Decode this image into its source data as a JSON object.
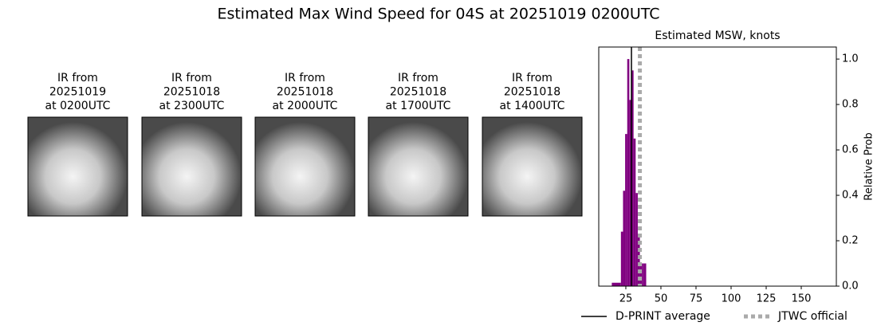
{
  "title": "Estimated Max Wind Speed for 04S at 20251019 0200UTC",
  "panels": [
    {
      "lines": [
        "IR from",
        "20251019",
        "at 0200UTC"
      ]
    },
    {
      "lines": [
        "IR from",
        "20251018",
        "at 2300UTC"
      ]
    },
    {
      "lines": [
        "IR from",
        "20251018",
        "at 2000UTC"
      ]
    },
    {
      "lines": [
        "IR from",
        "20251018",
        "at 1700UTC"
      ]
    },
    {
      "lines": [
        "IR from",
        "20251018",
        "at 1400UTC"
      ]
    }
  ],
  "chart_data": {
    "type": "histogram",
    "title": "Estimated MSW, knots",
    "ylabel": "Relative Prob",
    "y_axis_side": "right",
    "bins": [
      15,
      21.5,
      23,
      24.5,
      26,
      27.5,
      29,
      30.5,
      32,
      33.5,
      35,
      36.5,
      38,
      39.5
    ],
    "values": [
      0.015,
      0.24,
      0.42,
      0.67,
      1.0,
      0.82,
      0.95,
      0.65,
      0.41,
      0.23,
      0.1,
      0.1,
      0.1
    ],
    "color": "#800080",
    "reference_lines": [
      {
        "name": "D-PRINT average",
        "value": 29,
        "color": "#000000",
        "style": "solid"
      },
      {
        "name": "JTWC official",
        "value": 35,
        "color": "#aaaaaa",
        "style": "dotted"
      }
    ],
    "xlim": [
      5.7,
      175
    ],
    "xticks": [
      25,
      50,
      75,
      100,
      125,
      150
    ],
    "ylim": [
      0,
      1.053
    ],
    "yticks": [
      {
        "value": 0,
        "label": "0.0"
      },
      {
        "value": 0.2,
        "label": "0.2"
      },
      {
        "value": 0.4,
        "label": "0.4"
      },
      {
        "value": 0.6,
        "label": "0.6"
      },
      {
        "value": 0.8,
        "label": "0.8"
      },
      {
        "value": 1,
        "label": "1.0"
      }
    ]
  }
}
